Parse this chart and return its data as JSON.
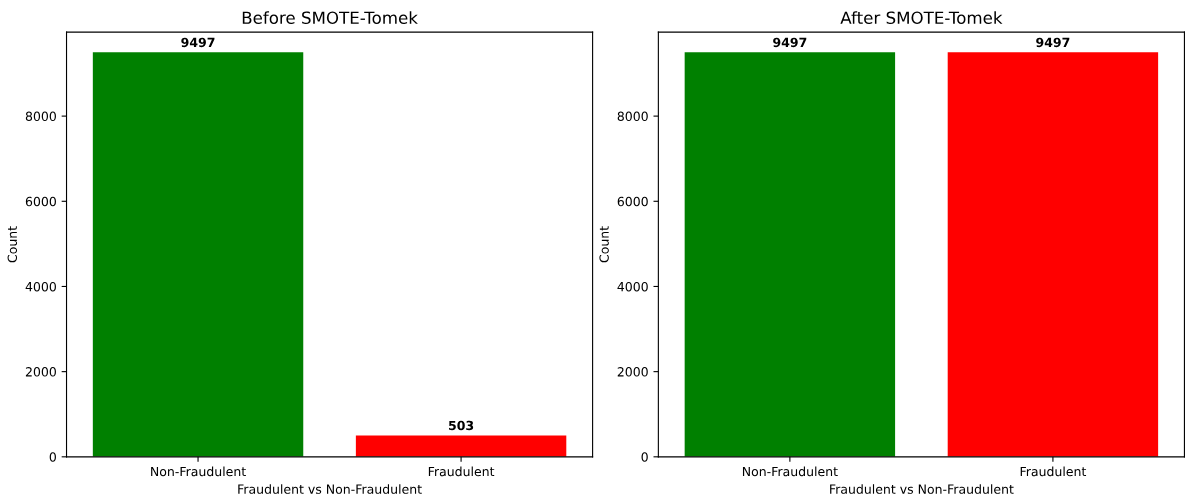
{
  "chart_data": [
    {
      "type": "bar",
      "title": "Before SMOTE-Tomek",
      "xlabel": "Fraudulent vs Non-Fraudulent",
      "ylabel": "Count",
      "categories": [
        "Non-Fraudulent",
        "Fraudulent"
      ],
      "values": [
        9497,
        503
      ],
      "colors": [
        "#008000",
        "#ff0000"
      ],
      "ylim": [
        0,
        9972
      ],
      "yticks": [
        0,
        2000,
        4000,
        6000,
        8000
      ],
      "data_labels": true,
      "grid": false,
      "legend": false
    },
    {
      "type": "bar",
      "title": "After SMOTE-Tomek",
      "xlabel": "Fraudulent vs Non-Fraudulent",
      "ylabel": "Count",
      "categories": [
        "Non-Fraudulent",
        "Fraudulent"
      ],
      "values": [
        9497,
        9497
      ],
      "colors": [
        "#008000",
        "#ff0000"
      ],
      "ylim": [
        0,
        9972
      ],
      "yticks": [
        0,
        2000,
        4000,
        6000,
        8000
      ],
      "data_labels": true,
      "grid": false,
      "legend": false
    }
  ]
}
